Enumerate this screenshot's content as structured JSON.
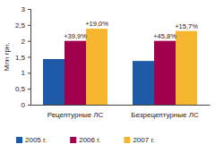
{
  "chart_data": {
    "type": "bar",
    "y_label": "Млн грн.",
    "categories": [
      "Рецептурные ЛС",
      "Безрецептурные ЛС"
    ],
    "series": [
      {
        "name": "2005 г.",
        "color": "#1f5aa8",
        "values": [
          1.43,
          1.37
        ]
      },
      {
        "name": "2006 г.",
        "color": "#a1004c",
        "values": [
          2.0,
          2.0
        ]
      },
      {
        "name": "2007 г.",
        "color": "#f6b630",
        "values": [
          2.38,
          2.31
        ]
      }
    ],
    "annotations": [
      {
        "series": "2006 г.",
        "category": "Рецептурные ЛС",
        "text": "+39,9%"
      },
      {
        "series": "2007 г.",
        "category": "Рецептурные ЛС",
        "text": "+19,0%"
      },
      {
        "series": "2006 г.",
        "category": "Безрецептурные ЛС",
        "text": "+45,8%"
      },
      {
        "series": "2007 г.",
        "category": "Безрецептурные ЛС",
        "text": "+15,7%"
      }
    ],
    "ylim": [
      0,
      3
    ],
    "yticks": [
      0,
      {
        "value": 0.5,
        "label": "0,5"
      },
      1,
      {
        "value": 1.5,
        "label": "1,5"
      },
      2,
      {
        "value": 2.5,
        "label": "2,5"
      },
      3
    ],
    "grid": false,
    "legend": "bottom"
  }
}
